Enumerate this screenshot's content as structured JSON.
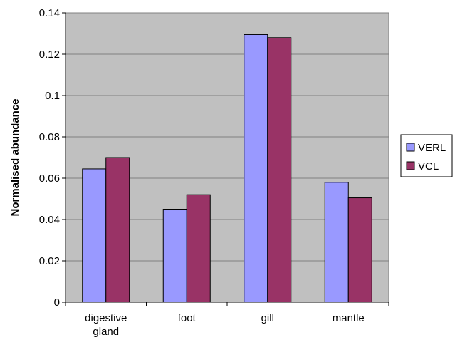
{
  "chart_data": {
    "type": "bar",
    "title": "",
    "xlabel": "",
    "ylabel": "Normalised abundance",
    "ylim": [
      0,
      0.14
    ],
    "yticks": [
      "0",
      "0.02",
      "0.04",
      "0.06",
      "0.08",
      "0.1",
      "0.12",
      "0.14"
    ],
    "categories": [
      [
        "digestive",
        "gland"
      ],
      [
        "foot"
      ],
      [
        "gill"
      ],
      [
        "mantle"
      ]
    ],
    "series": [
      {
        "name": "VERL",
        "color": "#9999ff",
        "values": [
          0.0645,
          0.045,
          0.1295,
          0.058
        ]
      },
      {
        "name": "VCL",
        "color": "#993366",
        "values": [
          0.07,
          0.052,
          0.128,
          0.0505
        ]
      }
    ],
    "grid": true,
    "plot_background": "#c0c0c0",
    "legend_position": "right"
  }
}
